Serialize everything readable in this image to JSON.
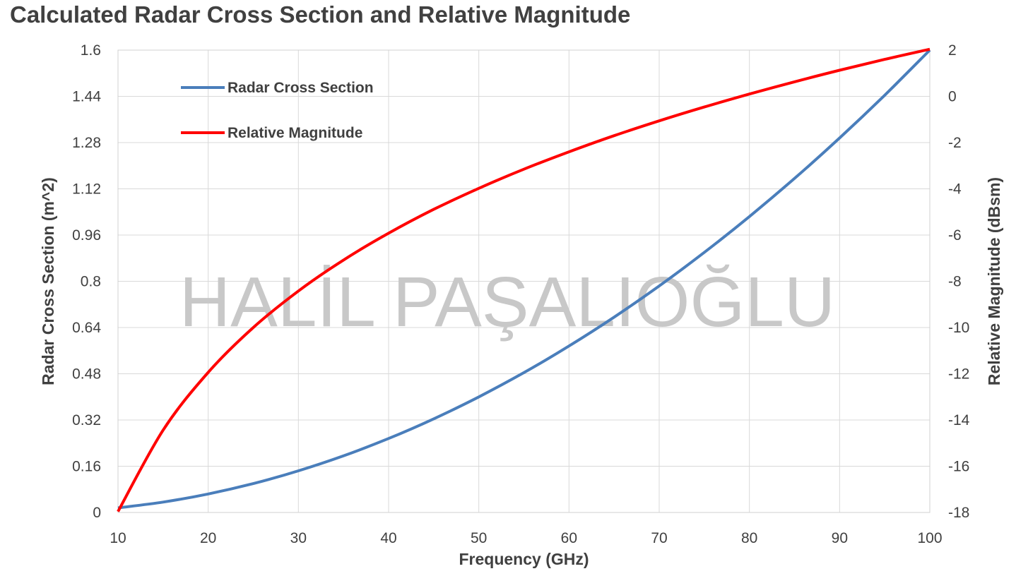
{
  "chart_data": {
    "type": "line",
    "title": "Calculated Radar Cross Section and Relative Magnitude",
    "xlabel": "Frequency (GHz)",
    "ylabel": "Radar Cross Section (m^2)",
    "y2label": "Relative Magnitude (dBsm)",
    "watermark": "HALİL PAŞALIOĞLU",
    "xlim": [
      10,
      100
    ],
    "ylim": [
      0,
      1.6
    ],
    "y2lim": [
      -18,
      2
    ],
    "x_ticks": [
      "10",
      "20",
      "30",
      "40",
      "50",
      "60",
      "70",
      "80",
      "90",
      "100"
    ],
    "y_ticks": [
      "0",
      "0.16",
      "0.32",
      "0.48",
      "0.64",
      "0.8",
      "0.96",
      "1.12",
      "1.28",
      "1.44",
      "1.6"
    ],
    "y2_ticks": [
      "-18",
      "-16",
      "-14",
      "-12",
      "-10",
      "-8",
      "-6",
      "-4",
      "-2",
      "0",
      "2"
    ],
    "grid": true,
    "legend_position": "top-left",
    "series": [
      {
        "name": "Radar Cross Section",
        "axis": "left",
        "color": "#4a7ebb",
        "x": [
          10,
          15,
          20,
          25,
          30,
          35,
          40,
          45,
          50,
          55,
          60,
          65,
          70,
          75,
          80,
          85,
          90,
          95,
          100
        ],
        "values": [
          0.016,
          0.036,
          0.064,
          0.1,
          0.144,
          0.196,
          0.256,
          0.324,
          0.4,
          0.484,
          0.576,
          0.676,
          0.784,
          0.9,
          1.024,
          1.156,
          1.296,
          1.444,
          1.6
        ]
      },
      {
        "name": "Relative Magnitude",
        "axis": "right",
        "color": "#ff0000",
        "x": [
          10,
          15,
          20,
          25,
          30,
          35,
          40,
          45,
          50,
          55,
          60,
          65,
          70,
          75,
          80,
          85,
          90,
          95,
          100
        ],
        "values": [
          -17.96,
          -14.44,
          -11.94,
          -10.0,
          -8.42,
          -7.08,
          -5.92,
          -4.89,
          -3.98,
          -3.15,
          -2.4,
          -1.7,
          -1.06,
          -0.46,
          0.1,
          0.63,
          1.13,
          1.6,
          2.04
        ]
      }
    ]
  }
}
